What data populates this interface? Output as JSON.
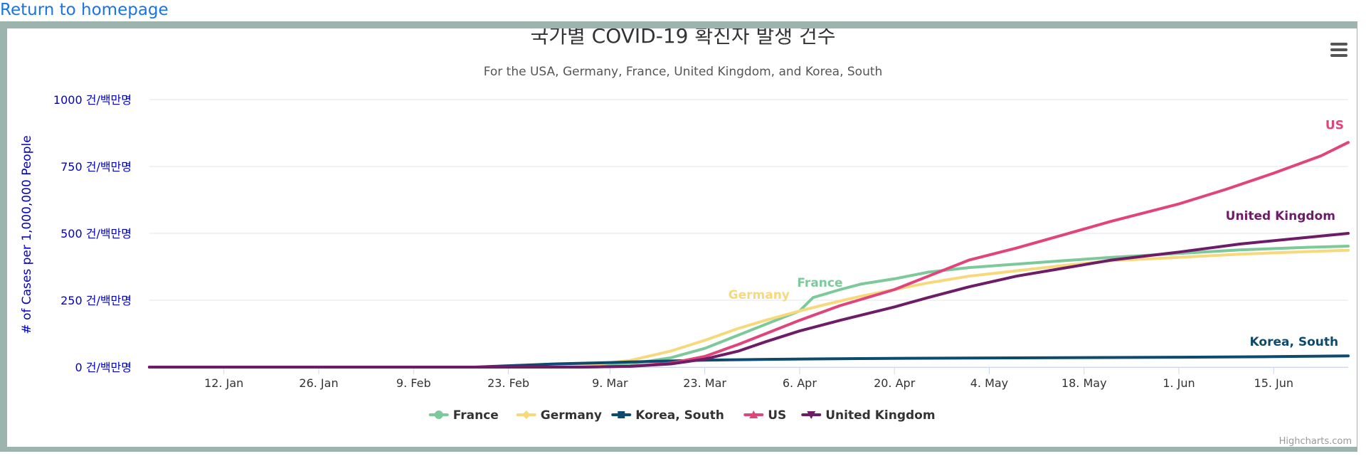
{
  "page": {
    "home_link": "Return to homepage"
  },
  "credits": "Highcharts.com",
  "chart_data": {
    "type": "line",
    "title": "국가별 COVID-19 확진자 발생 건수",
    "subtitle": "For the USA, Germany, France, United Kingdom, and Korea, South",
    "ylabel": "# of Cases per 1,000,000 People",
    "xlabel": "",
    "ylim": [
      0,
      1000
    ],
    "yticks": [
      {
        "value": 0,
        "label": "0 건/백만명"
      },
      {
        "value": 250,
        "label": "250 건/백만명"
      },
      {
        "value": 500,
        "label": "500 건/백만명"
      },
      {
        "value": 750,
        "label": "750 건/백만명"
      },
      {
        "value": 1000,
        "label": "1000 건/백만명"
      }
    ],
    "xlim": [
      "2020-01-01",
      "2020-06-26"
    ],
    "xticks": [
      {
        "date": "2020-01-12",
        "label": "12. Jan"
      },
      {
        "date": "2020-01-26",
        "label": "26. Jan"
      },
      {
        "date": "2020-02-09",
        "label": "9. Feb"
      },
      {
        "date": "2020-02-23",
        "label": "23. Feb"
      },
      {
        "date": "2020-03-09",
        "label": "9. Mar"
      },
      {
        "date": "2020-03-23",
        "label": "23. Mar"
      },
      {
        "date": "2020-04-06",
        "label": "6. Apr"
      },
      {
        "date": "2020-04-20",
        "label": "20. Apr"
      },
      {
        "date": "2020-05-04",
        "label": "4. May"
      },
      {
        "date": "2020-05-18",
        "label": "18. May"
      },
      {
        "date": "2020-06-01",
        "label": "1. Jun"
      },
      {
        "date": "2020-06-15",
        "label": "15. Jun"
      }
    ],
    "grid": true,
    "legend_position": "bottom-center",
    "series": [
      {
        "name": "France",
        "color": "#7cc99a",
        "marker": "circle",
        "points": [
          [
            "2020-01-01",
            0
          ],
          [
            "2020-02-20",
            0
          ],
          [
            "2020-03-05",
            3
          ],
          [
            "2020-03-12",
            12
          ],
          [
            "2020-03-18",
            35
          ],
          [
            "2020-03-23",
            70
          ],
          [
            "2020-03-28",
            120
          ],
          [
            "2020-04-01",
            160
          ],
          [
            "2020-04-06",
            210
          ],
          [
            "2020-04-08",
            260
          ],
          [
            "2020-04-12",
            290
          ],
          [
            "2020-04-15",
            310
          ],
          [
            "2020-04-20",
            330
          ],
          [
            "2020-04-25",
            355
          ],
          [
            "2020-05-01",
            372
          ],
          [
            "2020-05-08",
            385
          ],
          [
            "2020-05-15",
            398
          ],
          [
            "2020-05-22",
            410
          ],
          [
            "2020-06-01",
            425
          ],
          [
            "2020-06-10",
            438
          ],
          [
            "2020-06-20",
            448
          ],
          [
            "2020-06-26",
            452
          ]
        ]
      },
      {
        "name": "Germany",
        "color": "#f7d97c",
        "marker": "diamond",
        "points": [
          [
            "2020-01-01",
            0
          ],
          [
            "2020-02-25",
            0
          ],
          [
            "2020-03-05",
            5
          ],
          [
            "2020-03-12",
            25
          ],
          [
            "2020-03-18",
            60
          ],
          [
            "2020-03-23",
            100
          ],
          [
            "2020-03-28",
            145
          ],
          [
            "2020-04-01",
            175
          ],
          [
            "2020-04-06",
            210
          ],
          [
            "2020-04-10",
            235
          ],
          [
            "2020-04-15",
            265
          ],
          [
            "2020-04-20",
            290
          ],
          [
            "2020-04-25",
            315
          ],
          [
            "2020-05-01",
            340
          ],
          [
            "2020-05-08",
            360
          ],
          [
            "2020-05-15",
            380
          ],
          [
            "2020-05-22",
            398
          ],
          [
            "2020-06-01",
            410
          ],
          [
            "2020-06-10",
            422
          ],
          [
            "2020-06-20",
            432
          ],
          [
            "2020-06-26",
            437
          ]
        ]
      },
      {
        "name": "Korea, South",
        "color": "#0c4a6e",
        "marker": "square",
        "points": [
          [
            "2020-01-01",
            0
          ],
          [
            "2020-02-18",
            0
          ],
          [
            "2020-02-24",
            6
          ],
          [
            "2020-03-01",
            12
          ],
          [
            "2020-03-09",
            17
          ],
          [
            "2020-03-16",
            22
          ],
          [
            "2020-03-23",
            26
          ],
          [
            "2020-04-01",
            29
          ],
          [
            "2020-04-15",
            32
          ],
          [
            "2020-05-01",
            34
          ],
          [
            "2020-05-15",
            35
          ],
          [
            "2020-06-01",
            37
          ],
          [
            "2020-06-15",
            39
          ],
          [
            "2020-06-26",
            42
          ]
        ]
      },
      {
        "name": "US",
        "color": "#e0447a",
        "marker": "triangle",
        "points": [
          [
            "2020-01-01",
            0
          ],
          [
            "2020-03-05",
            0
          ],
          [
            "2020-03-12",
            3
          ],
          [
            "2020-03-18",
            15
          ],
          [
            "2020-03-23",
            40
          ],
          [
            "2020-03-28",
            85
          ],
          [
            "2020-04-01",
            125
          ],
          [
            "2020-04-06",
            175
          ],
          [
            "2020-04-12",
            230
          ],
          [
            "2020-04-20",
            290
          ],
          [
            "2020-04-25",
            340
          ],
          [
            "2020-05-01",
            400
          ],
          [
            "2020-05-08",
            445
          ],
          [
            "2020-05-15",
            495
          ],
          [
            "2020-05-22",
            545
          ],
          [
            "2020-06-01",
            610
          ],
          [
            "2020-06-08",
            665
          ],
          [
            "2020-06-15",
            725
          ],
          [
            "2020-06-22",
            790
          ],
          [
            "2020-06-26",
            840
          ]
        ]
      },
      {
        "name": "United Kingdom",
        "color": "#6e1c68",
        "marker": "triangle-down",
        "points": [
          [
            "2020-01-01",
            0
          ],
          [
            "2020-03-05",
            0
          ],
          [
            "2020-03-12",
            3
          ],
          [
            "2020-03-18",
            12
          ],
          [
            "2020-03-23",
            30
          ],
          [
            "2020-03-28",
            60
          ],
          [
            "2020-04-01",
            95
          ],
          [
            "2020-04-06",
            135
          ],
          [
            "2020-04-12",
            175
          ],
          [
            "2020-04-20",
            225
          ],
          [
            "2020-04-25",
            260
          ],
          [
            "2020-05-01",
            300
          ],
          [
            "2020-05-08",
            340
          ],
          [
            "2020-05-15",
            370
          ],
          [
            "2020-05-22",
            400
          ],
          [
            "2020-06-01",
            430
          ],
          [
            "2020-06-10",
            460
          ],
          [
            "2020-06-20",
            485
          ],
          [
            "2020-06-26",
            500
          ]
        ]
      }
    ],
    "annotations": [
      {
        "series": "France",
        "text": "France",
        "color": "#7cc99a",
        "date": "2020-04-09",
        "value": 300
      },
      {
        "series": "Germany",
        "text": "Germany",
        "color": "#f7d97c",
        "date": "2020-03-31",
        "value": 255
      },
      {
        "series": "Korea, South",
        "text": "Korea, South",
        "color": "#0c4a6e",
        "date": "2020-06-18",
        "value": 80
      },
      {
        "series": "US",
        "text": "US",
        "color": "#e0447a",
        "date": "2020-06-24",
        "value": 890
      },
      {
        "series": "United Kingdom",
        "text": "United Kingdom",
        "color": "#6e1c68",
        "date": "2020-06-16",
        "value": 550
      }
    ]
  }
}
